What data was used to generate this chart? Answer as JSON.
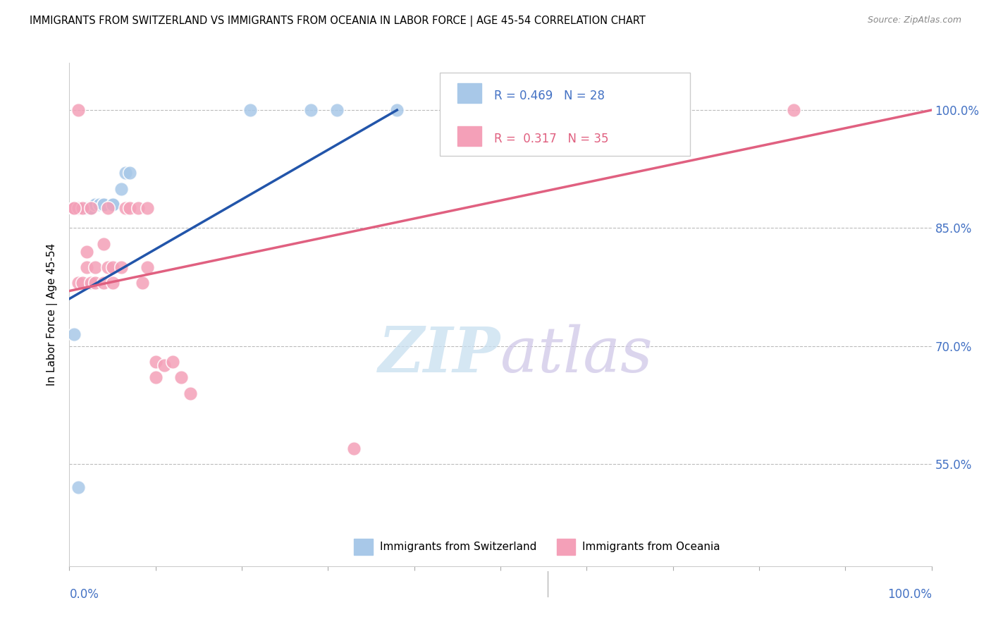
{
  "title": "IMMIGRANTS FROM SWITZERLAND VS IMMIGRANTS FROM OCEANIA IN LABOR FORCE | AGE 45-54 CORRELATION CHART",
  "source": "Source: ZipAtlas.com",
  "ylabel": "In Labor Force | Age 45-54",
  "legend_label1": "Immigrants from Switzerland",
  "legend_label2": "Immigrants from Oceania",
  "R1": 0.469,
  "N1": 28,
  "R2": 0.317,
  "N2": 35,
  "color_blue": "#a8c8e8",
  "color_pink": "#f4a0b8",
  "color_blue_line": "#2255aa",
  "color_pink_line": "#e06080",
  "color_axis_labels": "#4472c4",
  "watermark_zip": "ZIP",
  "watermark_atlas": "atlas",
  "xlim": [
    0.0,
    1.0
  ],
  "ylim": [
    0.42,
    1.06
  ],
  "ytick_vals": [
    0.55,
    0.7,
    0.85,
    1.0
  ],
  "ytick_labels": [
    "55.0%",
    "70.0%",
    "85.0%",
    "100.0%"
  ],
  "blue_x": [
    0.005,
    0.01,
    0.01,
    0.015,
    0.015,
    0.02,
    0.02,
    0.02,
    0.025,
    0.025,
    0.025,
    0.03,
    0.03,
    0.035,
    0.035,
    0.04,
    0.04,
    0.05,
    0.05,
    0.06,
    0.065,
    0.07,
    0.21,
    0.28,
    0.31,
    0.38,
    0.005,
    0.01
  ],
  "blue_y": [
    0.875,
    0.875,
    0.875,
    0.875,
    0.875,
    0.875,
    0.875,
    0.875,
    0.875,
    0.875,
    0.875,
    0.88,
    0.88,
    0.88,
    0.88,
    0.88,
    0.88,
    0.88,
    0.88,
    0.9,
    0.92,
    0.92,
    1.0,
    1.0,
    1.0,
    1.0,
    0.715,
    0.52
  ],
  "pink_x": [
    0.005,
    0.005,
    0.01,
    0.01,
    0.015,
    0.015,
    0.02,
    0.02,
    0.025,
    0.025,
    0.03,
    0.03,
    0.04,
    0.04,
    0.045,
    0.045,
    0.05,
    0.05,
    0.06,
    0.065,
    0.07,
    0.08,
    0.085,
    0.09,
    0.09,
    0.1,
    0.1,
    0.11,
    0.12,
    0.13,
    0.14,
    0.005,
    0.01,
    0.33,
    0.84
  ],
  "pink_y": [
    0.875,
    0.875,
    0.875,
    0.78,
    0.875,
    0.78,
    0.82,
    0.8,
    0.875,
    0.78,
    0.78,
    0.8,
    0.83,
    0.78,
    0.875,
    0.8,
    0.8,
    0.78,
    0.8,
    0.875,
    0.875,
    0.875,
    0.78,
    0.875,
    0.8,
    0.68,
    0.66,
    0.675,
    0.68,
    0.66,
    0.64,
    0.875,
    1.0,
    0.57,
    1.0
  ],
  "blue_line_x": [
    0.0,
    0.38
  ],
  "blue_line_y": [
    0.76,
    1.0
  ],
  "pink_line_x": [
    0.0,
    1.0
  ],
  "pink_line_y": [
    0.77,
    1.0
  ]
}
